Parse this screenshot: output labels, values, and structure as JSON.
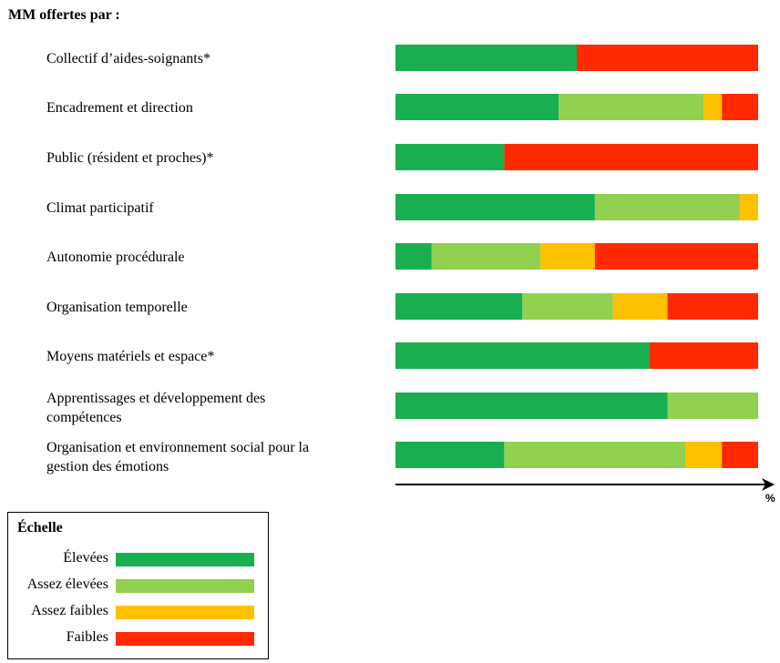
{
  "header": "MM offertes par :",
  "axis_unit": "%",
  "legend": {
    "title": "Échelle",
    "items": [
      {
        "label": "Élevées",
        "color": "#19AF50"
      },
      {
        "label": "Assez élevées",
        "color": "#92D050"
      },
      {
        "label": "Assez faibles",
        "color": "#FFC000"
      },
      {
        "label": "Faibles",
        "color": "#FF2A00"
      }
    ]
  },
  "chart_data": {
    "type": "bar",
    "orientation": "horizontal",
    "stacked": true,
    "xlabel": "%",
    "xlim": [
      0,
      100
    ],
    "grid": false,
    "categories": [
      "Collectif d’aides-soignants*",
      "Encadrement et direction",
      "Public (résident et proches)*",
      "Climat participatif",
      "Autonomie procédurale",
      "Organisation temporelle",
      "Moyens matériels et espace*",
      "Apprentissages et développement des compétences",
      "Organisation et environnement social pour la gestion des émotions"
    ],
    "category_lines": [
      [
        "Collectif d’aides-soignants*"
      ],
      [
        "Encadrement et direction"
      ],
      [
        "Public (résident et proches)*"
      ],
      [
        "Climat participatif"
      ],
      [
        "Autonomie procédurale"
      ],
      [
        "Organisation temporelle"
      ],
      [
        "Moyens matériels et espace*"
      ],
      [
        "Apprentissages et développement des",
        "compétences"
      ],
      [
        "Organisation et environnement social pour la",
        "gestion des émotions"
      ]
    ],
    "series": [
      {
        "name": "Élevées",
        "color": "#19AF50",
        "values": [
          50,
          45,
          30,
          55,
          10,
          35,
          70,
          75,
          30
        ]
      },
      {
        "name": "Assez élevées",
        "color": "#92D050",
        "values": [
          0,
          40,
          0,
          40,
          30,
          25,
          0,
          25,
          50
        ]
      },
      {
        "name": "Assez faibles",
        "color": "#FFC000",
        "values": [
          0,
          5,
          0,
          5,
          15,
          15,
          0,
          0,
          10
        ]
      },
      {
        "name": "Faibles",
        "color": "#FF2A00",
        "values": [
          50,
          10,
          70,
          0,
          45,
          25,
          30,
          0,
          10
        ]
      }
    ]
  }
}
